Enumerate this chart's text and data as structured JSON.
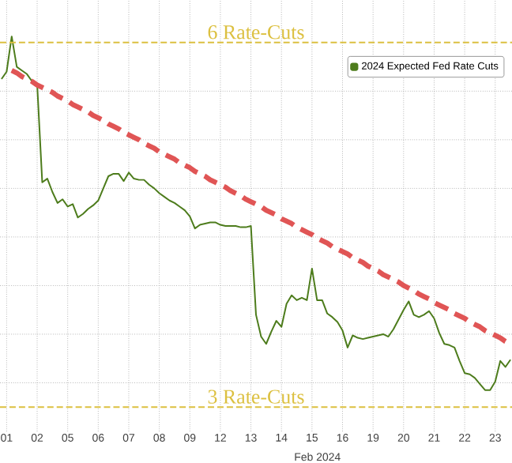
{
  "chart_data": {
    "type": "line",
    "xlabel": "Feb 2024",
    "categories": [
      null,
      "01",
      null,
      null,
      null,
      null,
      null,
      "02",
      null,
      null,
      null,
      null,
      null,
      "05",
      null,
      null,
      null,
      null,
      null,
      "06",
      null,
      null,
      null,
      null,
      null,
      "07",
      null,
      null,
      null,
      null,
      null,
      "08",
      null,
      null,
      null,
      null,
      null,
      "09",
      null,
      null,
      null,
      null,
      null,
      "12",
      null,
      null,
      null,
      null,
      null,
      "13",
      null,
      null,
      null,
      null,
      null,
      "14",
      null,
      null,
      null,
      null,
      null,
      "15",
      null,
      null,
      null,
      null,
      null,
      "16",
      null,
      null,
      null,
      null,
      null,
      "19",
      null,
      null,
      null,
      null,
      null,
      "20",
      null,
      null,
      null,
      null,
      null,
      "21",
      null,
      null,
      null,
      null,
      null,
      "22",
      null,
      null,
      null,
      null,
      null,
      "23",
      null,
      null,
      null
    ],
    "ylim": [
      2.8,
      6.35
    ],
    "yticks": [
      {
        "value": 3.2,
        "label": null
      },
      {
        "value": 3.6,
        "label": null
      },
      {
        "value": 4.0,
        "label": null
      },
      {
        "value": 4.4,
        "label": null
      },
      {
        "value": 4.8,
        "label": null
      },
      {
        "value": 5.2,
        "label": null
      },
      {
        "value": 5.6,
        "label": null
      }
    ],
    "tick_labels": "x",
    "grid": true,
    "legend": "top right",
    "marker": "none",
    "series": [
      {
        "name": "2024 Expected Fed Rate Cuts",
        "color": "#4d7c1c",
        "line_style": "solid",
        "values": [
          5.7,
          5.76,
          6.05,
          5.8,
          5.77,
          5.74,
          5.68,
          5.66,
          4.85,
          4.88,
          4.77,
          4.68,
          4.71,
          4.65,
          4.67,
          4.56,
          4.59,
          4.63,
          4.66,
          4.7,
          4.8,
          4.9,
          4.92,
          4.92,
          4.86,
          4.93,
          4.88,
          4.87,
          4.87,
          4.83,
          4.8,
          4.76,
          4.73,
          4.7,
          4.68,
          4.65,
          4.62,
          4.57,
          4.47,
          4.5,
          4.51,
          4.52,
          4.52,
          4.5,
          4.49,
          4.49,
          4.49,
          4.48,
          4.48,
          4.49,
          3.76,
          3.58,
          3.52,
          3.62,
          3.71,
          3.66,
          3.85,
          3.92,
          3.88,
          3.9,
          3.88,
          4.14,
          3.88,
          3.88,
          3.77,
          3.74,
          3.7,
          3.63,
          3.49,
          3.59,
          3.57,
          3.56,
          3.57,
          3.58,
          3.59,
          3.6,
          3.58,
          3.64,
          3.72,
          3.8,
          3.87,
          3.76,
          3.74,
          3.76,
          3.79,
          3.73,
          3.61,
          3.52,
          3.51,
          3.49,
          3.38,
          3.28,
          3.27,
          3.24,
          3.19,
          3.14,
          3.14,
          3.21,
          3.38,
          3.33,
          3.39
        ]
      },
      {
        "type": "line",
        "color": "#e05555",
        "line_style": "dashed",
        "values": [
          null,
          null,
          5.77,
          5.75,
          5.72,
          5.7,
          5.68,
          5.65,
          5.63,
          5.61,
          5.59,
          5.56,
          5.54,
          5.52,
          5.49,
          5.47,
          5.45,
          5.43,
          5.4,
          5.38,
          5.36,
          5.33,
          5.31,
          5.29,
          5.26,
          5.24,
          5.22,
          5.2,
          5.17,
          5.15,
          5.13,
          5.1,
          5.08,
          5.06,
          5.04,
          5.01,
          4.99,
          4.97,
          4.94,
          4.92,
          4.9,
          4.87,
          4.85,
          4.83,
          4.81,
          4.78,
          4.76,
          4.74,
          4.71,
          4.69,
          4.67,
          4.65,
          4.62,
          4.6,
          4.58,
          4.55,
          4.53,
          4.51,
          4.48,
          4.46,
          4.44,
          4.42,
          4.39,
          4.37,
          4.35,
          4.32,
          4.3,
          4.28,
          4.26,
          4.23,
          4.21,
          4.19,
          4.16,
          4.14,
          4.12,
          4.09,
          4.07,
          4.05,
          4.03,
          4.0,
          3.98,
          3.96,
          3.93,
          3.91,
          3.89,
          3.86,
          3.84,
          3.82,
          3.8,
          3.77,
          3.75,
          3.73,
          3.7,
          3.68,
          3.66,
          3.63,
          3.61,
          3.59,
          3.57,
          3.54,
          3.52
        ]
      }
    ],
    "ref_lines": [
      {
        "axis": "y",
        "value": 6,
        "label": "6 Rate-Cuts",
        "color": "#dcc040",
        "line_style": "dashed"
      },
      {
        "axis": "y",
        "value": 3,
        "label": "3 Rate-Cuts",
        "color": "#dcc040",
        "line_style": "dashed"
      }
    ]
  }
}
